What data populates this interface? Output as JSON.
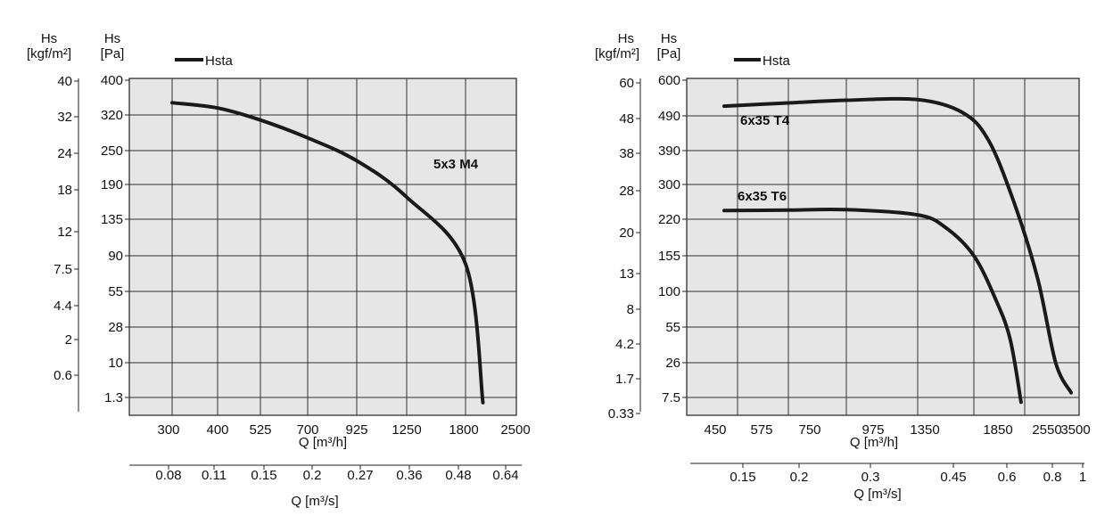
{
  "charts": [
    {
      "chart_data": {
        "type": "line",
        "left_axis": {
          "title_line1": "Hs",
          "title_line2": "[kgf/m²]",
          "ticks": [
            "40",
            "32",
            "24",
            "18",
            "12",
            "7.5",
            "4.4",
            "2",
            "0.6"
          ]
        },
        "right_axis": {
          "title_line1": "Hs",
          "title_line2": "[Pa]",
          "ticks": [
            "400",
            "320",
            "250",
            "190",
            "135",
            "90",
            "55",
            "28",
            "10",
            "1.3"
          ]
        },
        "x_axis": {
          "label": "Q [m³/h]",
          "ticks": [
            "300",
            "400",
            "525",
            "700",
            "925",
            "1250",
            "1800",
            "2500"
          ]
        },
        "x2_axis": {
          "label": "Q [m³/s]",
          "ticks": [
            "0.08",
            "0.11",
            "0.15",
            "0.2",
            "0.27",
            "0.36",
            "0.48",
            "0.64"
          ]
        },
        "legend": {
          "label": "Hsta",
          "placement": "top-left"
        },
        "grid": true,
        "series": [
          {
            "name": "5x3 M4",
            "points": [
              [
                300,
                348
              ],
              [
                400,
                336
              ],
              [
                525,
                310
              ],
              [
                700,
                275
              ],
              [
                925,
                232
              ],
              [
                1250,
                170
              ],
              [
                1800,
                82
              ],
              [
                2040,
                0
              ]
            ]
          }
        ]
      }
    },
    {
      "chart_data": {
        "type": "line",
        "left_axis": {
          "title_line1": "Hs",
          "title_line2": "[kgf/m²]",
          "ticks": [
            "60",
            "48",
            "38",
            "28",
            "20",
            "13",
            "8",
            "4.2",
            "1.7",
            "0.33"
          ]
        },
        "right_axis": {
          "title_line1": "Hs",
          "title_line2": "[Pa]",
          "ticks": [
            "600",
            "490",
            "390",
            "300",
            "220",
            "155",
            "100",
            "55",
            "26",
            "7.5"
          ]
        },
        "x_axis": {
          "label": "Q [m³/h]",
          "ticks": [
            "450",
            "575",
            "750",
            "975",
            "1350",
            "1850",
            "2550",
            "3500"
          ]
        },
        "x2_axis": {
          "label": "Q [m³/s]",
          "ticks": [
            "0.15",
            "0.2",
            "0.3",
            "0.45",
            "0.6",
            "0.8",
            "1"
          ]
        },
        "legend": {
          "label": "Hsta",
          "placement": "top-left"
        },
        "grid": true,
        "series": [
          {
            "name": "6x35 T4",
            "points": [
              [
                500,
                520
              ],
              [
                750,
                530
              ],
              [
                975,
                538
              ],
              [
                1350,
                540
              ],
              [
                1750,
                500
              ],
              [
                2050,
                420
              ],
              [
                2400,
                260
              ],
              [
                2800,
                120
              ],
              [
                3150,
                26
              ],
              [
                3450,
                10
              ]
            ]
          },
          {
            "name": "6x35 T6",
            "points": [
              [
                500,
                240
              ],
              [
                750,
                241
              ],
              [
                975,
                242
              ],
              [
                1350,
                230
              ],
              [
                1600,
                205
              ],
              [
                1850,
                155
              ],
              [
                2150,
                90
              ],
              [
                2350,
                45
              ],
              [
                2500,
                5
              ]
            ]
          }
        ]
      }
    }
  ]
}
